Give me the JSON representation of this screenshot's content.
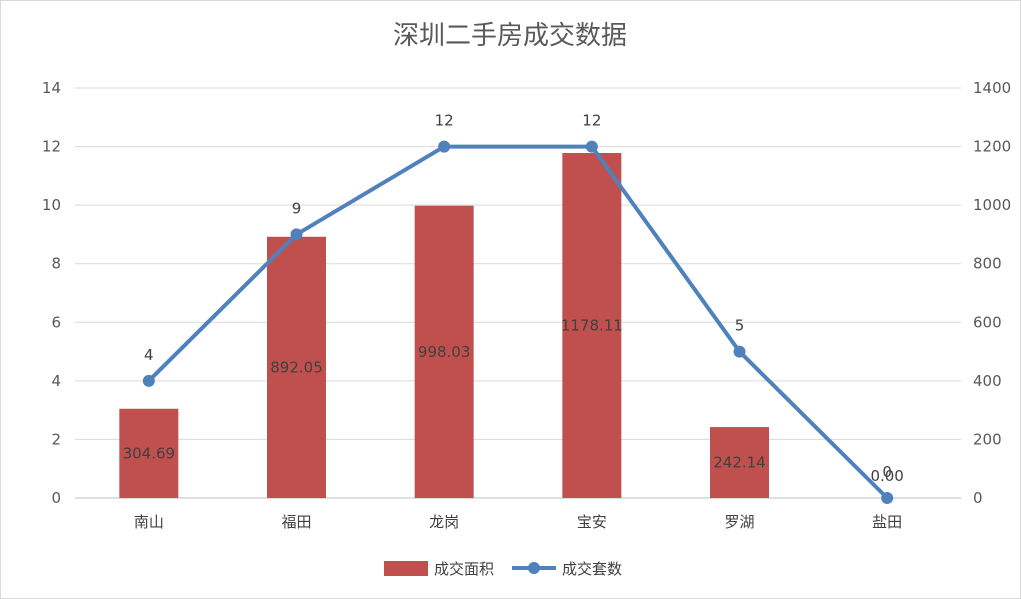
{
  "chart_data": {
    "type": "bar+line",
    "title": "深圳二手房成交数据",
    "categories": [
      "南山",
      "福田",
      "龙岗",
      "宝安",
      "罗湖",
      "盐田"
    ],
    "series": [
      {
        "name": "成交面积",
        "type": "bar",
        "axis": "right",
        "values": [
          304.69,
          892.05,
          998.03,
          1178.11,
          242.14,
          0.0
        ],
        "labels": [
          "304.69",
          "892.05",
          "998.03",
          "1178.11",
          "242.14",
          "0.00"
        ],
        "color": "#C0504D"
      },
      {
        "name": "成交套数",
        "type": "line",
        "axis": "left",
        "values": [
          4,
          9,
          12,
          12,
          5,
          0
        ],
        "labels": [
          "4",
          "9",
          "12",
          "12",
          "5",
          "0"
        ],
        "color": "#4F81BD"
      }
    ],
    "y_left": {
      "min": 0,
      "max": 14,
      "ticks": [
        "0",
        "2",
        "4",
        "6",
        "8",
        "10",
        "12",
        "14"
      ]
    },
    "y_right": {
      "min": 0,
      "max": 1400,
      "ticks": [
        "0",
        "200",
        "400",
        "600",
        "800",
        "1000",
        "1200",
        "1400"
      ]
    },
    "grid": true,
    "legend": "bottom"
  }
}
